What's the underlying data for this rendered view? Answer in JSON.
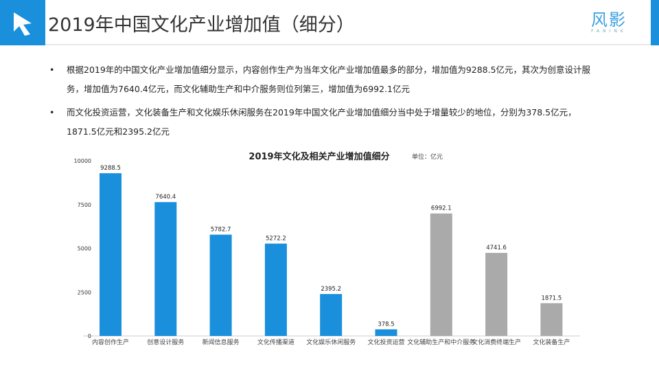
{
  "header": {
    "title": "2019年中国文化产业增加值（细分）",
    "brand": "风影",
    "brand_sub": "FANINK"
  },
  "bullets": [
    "根据2019年的中国文化产业增加值细分显示，内容创作生产为当年文化产业增加值最多的部分，增加值为9288.5亿元，其次为创意设计服务，增加值为7640.4亿元，而文化辅助生产和中介服务则位列第三，增加值为6992.1亿元",
    "而文化投资运营，文化装备生产和文化娱乐休闲服务在2019年中国文化产业增加值细分当中处于增量较少的地位，分别为378.5亿元，1871.5亿元和2395.2亿元"
  ],
  "bullet_symbol": "•",
  "chart_data": {
    "type": "bar",
    "title": "2019年文化及相关产业增加值细分",
    "unit": "单位：亿元",
    "categories": [
      "内容创作生产",
      "创意设计服务",
      "新闻信息服务",
      "文化传播渠道",
      "文化娱乐休闲服务",
      "文化投资运营",
      "文化辅助生产和中介服务",
      "文化消费终端生产",
      "文化装备生产"
    ],
    "values": [
      9288.5,
      7640.4,
      5782.7,
      5272.2,
      2395.2,
      378.5,
      6992.1,
      4741.6,
      1871.5
    ],
    "labels": [
      "9288.5",
      "7640.4",
      "5782.7",
      "5272.2",
      "2395.2",
      "378.5",
      "6992.1",
      "4741.6",
      "1871.5"
    ],
    "colors": [
      "#1a8fdc",
      "#1a8fdc",
      "#1a8fdc",
      "#1a8fdc",
      "#1a8fdc",
      "#1a8fdc",
      "#aaaaaa",
      "#aaaaaa",
      "#aaaaaa"
    ],
    "ylim": [
      0,
      10000
    ],
    "yticks": [
      "0",
      "2500",
      "5000",
      "7500",
      "10000"
    ],
    "grid": false
  }
}
